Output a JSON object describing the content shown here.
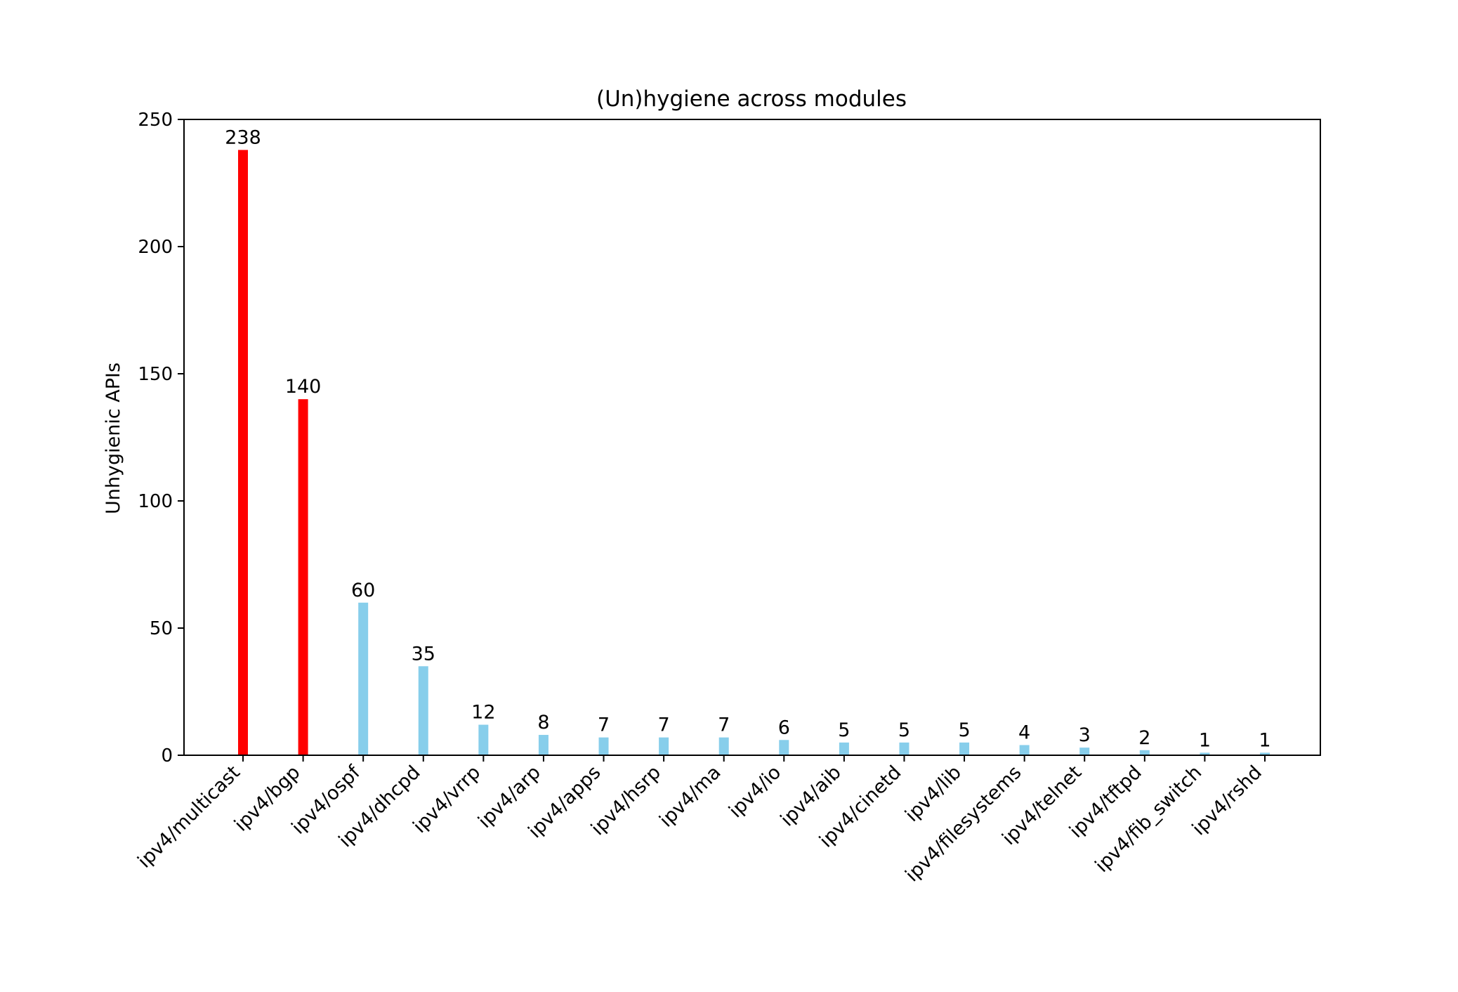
{
  "chart_data": {
    "type": "bar",
    "title": "(Un)hygiene across modules",
    "xlabel": "",
    "ylabel": "Unhygienic APIs",
    "ylim": [
      0,
      250
    ],
    "yticks": [
      0,
      50,
      100,
      150,
      200,
      250
    ],
    "grid": false,
    "categories": [
      "ipv4/multicast",
      "ipv4/bgp",
      "ipv4/ospf",
      "ipv4/dhcpd",
      "ipv4/vrrp",
      "ipv4/arp",
      "ipv4/apps",
      "ipv4/hsrp",
      "ipv4/ma",
      "ipv4/io",
      "ipv4/aib",
      "ipv4/cinetd",
      "ipv4/lib",
      "ipv4/filesystems",
      "ipv4/telnet",
      "ipv4/tftpd",
      "ipv4/fib_switch",
      "ipv4/rshd"
    ],
    "values": [
      238,
      140,
      60,
      35,
      12,
      8,
      7,
      7,
      7,
      6,
      5,
      5,
      5,
      4,
      3,
      2,
      1,
      1
    ],
    "data_labels": [
      "238",
      "140",
      "60",
      "35",
      "12",
      "8",
      "7",
      "7",
      "7",
      "6",
      "5",
      "5",
      "5",
      "4",
      "3",
      "2",
      "1",
      "1"
    ],
    "highlight_count": 2,
    "colors": {
      "highlight": "#ff0000",
      "default": "#87ceeb",
      "axis": "#000000",
      "text": "#000000"
    }
  }
}
